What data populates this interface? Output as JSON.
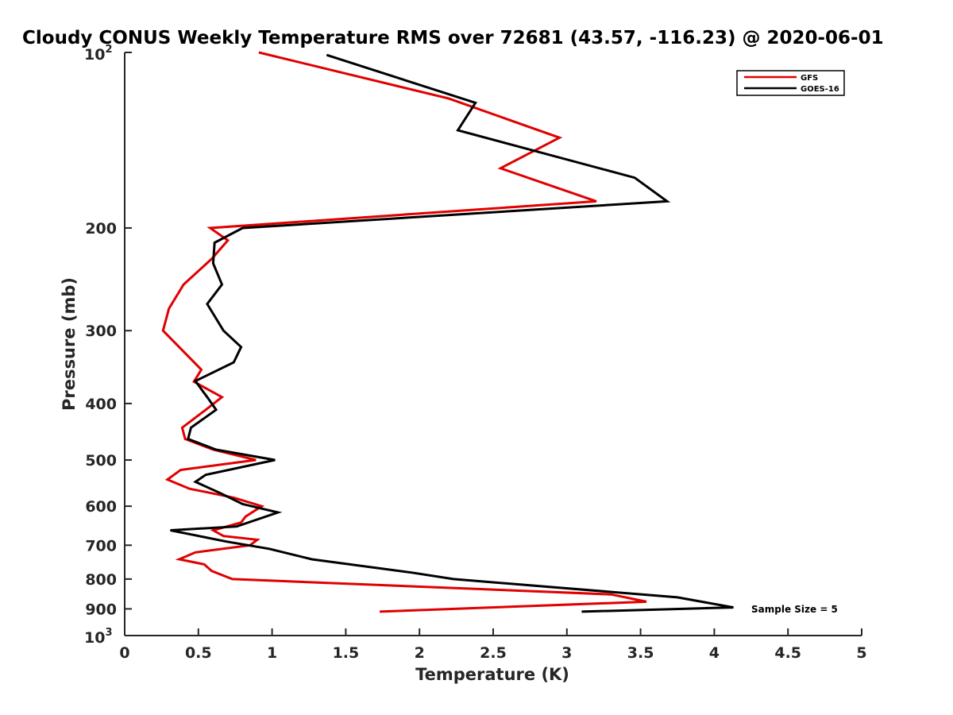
{
  "chart_data": {
    "type": "line",
    "title": "Cloudy CONUS Weekly Temperature RMS over 72681 (43.57, -116.23) @ 2020-06-01",
    "xlabel": "Temperature (K)",
    "ylabel": "Pressure (mb)",
    "xlim": [
      0,
      5
    ],
    "ylim": [
      100,
      1000
    ],
    "y_scale": "log",
    "y_reversed": true,
    "x_ticks": [
      0,
      0.5,
      1,
      1.5,
      2,
      2.5,
      3,
      3.5,
      4,
      4.5,
      5
    ],
    "x_tick_labels": [
      "0",
      "0.5",
      "1",
      "1.5",
      "2",
      "2.5",
      "3",
      "3.5",
      "4",
      "4.5",
      "5"
    ],
    "y_ticks": [
      200,
      300,
      400,
      500,
      600,
      700,
      800,
      900
    ],
    "y_tick_labels": [
      "200",
      "300",
      "400",
      "500",
      "600",
      "700",
      "800",
      "900"
    ],
    "y_extreme_labels": {
      "top_base": "10",
      "top_exp": "2",
      "bottom_base": "10",
      "bottom_exp": "3"
    },
    "grid": false,
    "legend_position": "top-right",
    "annotation": "Sample Size = 5",
    "series": [
      {
        "name": "GFS",
        "color": "#e00000",
        "points": [
          [
            0.91,
            100
          ],
          [
            2.2,
            120
          ],
          [
            2.95,
            140
          ],
          [
            2.55,
            158
          ],
          [
            3.2,
            180
          ],
          [
            0.58,
            200
          ],
          [
            0.7,
            210
          ],
          [
            0.59,
            226
          ],
          [
            0.4,
            250
          ],
          [
            0.3,
            275
          ],
          [
            0.26,
            300
          ],
          [
            0.52,
            350
          ],
          [
            0.47,
            367
          ],
          [
            0.66,
            390
          ],
          [
            0.55,
            410
          ],
          [
            0.39,
            440
          ],
          [
            0.41,
            460
          ],
          [
            0.6,
            480
          ],
          [
            0.89,
            500
          ],
          [
            0.38,
            520
          ],
          [
            0.29,
            540
          ],
          [
            0.44,
            560
          ],
          [
            0.74,
            580
          ],
          [
            0.93,
            600
          ],
          [
            0.82,
            625
          ],
          [
            0.79,
            640
          ],
          [
            0.6,
            660
          ],
          [
            0.67,
            675
          ],
          [
            0.9,
            685
          ],
          [
            0.85,
            700
          ],
          [
            0.48,
            720
          ],
          [
            0.37,
            740
          ],
          [
            0.54,
            755
          ],
          [
            0.59,
            775
          ],
          [
            0.73,
            800
          ],
          [
            3.3,
            850
          ],
          [
            3.54,
            875
          ],
          [
            1.73,
            910
          ]
        ]
      },
      {
        "name": "GOES-16",
        "color": "#000000",
        "points": [
          [
            1.37,
            101
          ],
          [
            2.38,
            122
          ],
          [
            2.26,
            136
          ],
          [
            3.46,
            164
          ],
          [
            3.68,
            180
          ],
          [
            0.8,
            200
          ],
          [
            0.61,
            212
          ],
          [
            0.6,
            230
          ],
          [
            0.66,
            250
          ],
          [
            0.56,
            270
          ],
          [
            0.67,
            300
          ],
          [
            0.79,
            320
          ],
          [
            0.74,
            340
          ],
          [
            0.48,
            366
          ],
          [
            0.52,
            378
          ],
          [
            0.56,
            390
          ],
          [
            0.62,
            410
          ],
          [
            0.45,
            440
          ],
          [
            0.43,
            460
          ],
          [
            0.62,
            480
          ],
          [
            1.02,
            500
          ],
          [
            0.55,
            530
          ],
          [
            0.48,
            545
          ],
          [
            0.65,
            570
          ],
          [
            0.8,
            595
          ],
          [
            1.04,
            615
          ],
          [
            0.76,
            650
          ],
          [
            0.31,
            660
          ],
          [
            0.69,
            690
          ],
          [
            0.98,
            710
          ],
          [
            1.27,
            740
          ],
          [
            1.95,
            780
          ],
          [
            2.23,
            800
          ],
          [
            3.75,
            860
          ],
          [
            4.13,
            895
          ],
          [
            3.1,
            910
          ]
        ]
      }
    ]
  }
}
